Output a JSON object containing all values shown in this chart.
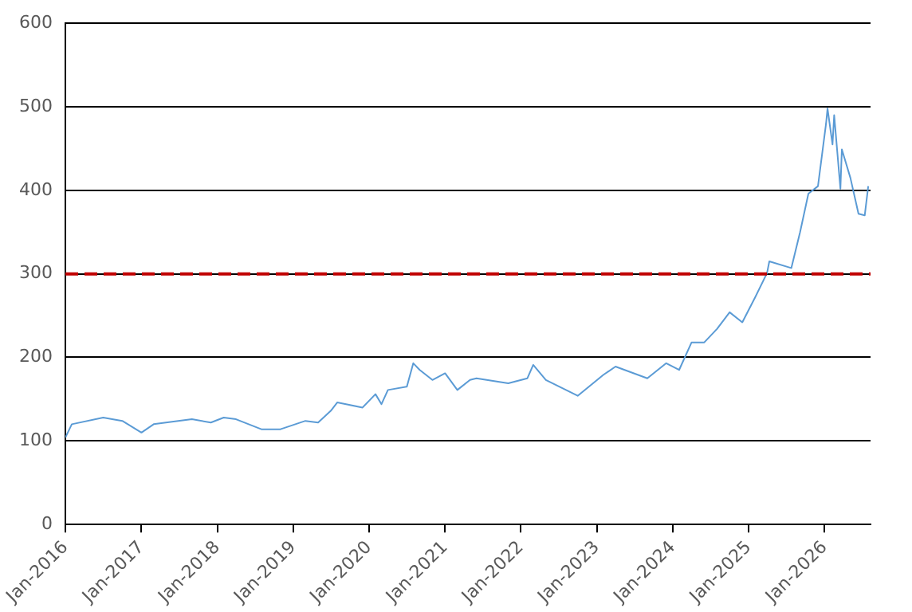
{
  "chart_data": {
    "type": "line",
    "x": [
      "2016-01",
      "2016-02",
      "2016-07",
      "2016-10",
      "2017-01",
      "2017-03",
      "2017-09",
      "2017-12",
      "2018-02",
      "2018-04",
      "2018-08",
      "2018-11",
      "2019-03",
      "2019-05",
      "2019-07",
      "2019-08",
      "2019-12",
      "2020-02",
      "2020-03",
      "2020-04",
      "2020-07",
      "2020-08",
      "2020-09",
      "2020-11",
      "2021-01",
      "2021-03",
      "2021-05",
      "2021-06",
      "2021-11",
      "2022-02",
      "2022-03",
      "2022-05",
      "2022-10",
      "2023-02",
      "2023-04",
      "2023-09",
      "2023-12",
      "2024-02",
      "2024-04",
      "2024-06",
      "2024-08",
      "2024-10",
      "2024-12",
      "2025-02",
      "2025-03-30",
      "2025-04-10",
      "2025-07-25",
      "2025-09-05",
      "2025-10-15",
      "2025-11-30",
      "2026-01-08",
      "2026-01-15",
      "2026-02-08",
      "2026-02-16",
      "2026-03-18",
      "2026-03-25",
      "2026-05-05",
      "2026-06-13",
      "2026-07-13",
      "2026-07-30"
    ],
    "series": [
      {
        "color": "#5b9bd5",
        "values": [
          104,
          120,
          128,
          124,
          110,
          120,
          126,
          122,
          128,
          126,
          114,
          114,
          124,
          122,
          136,
          146,
          140,
          156,
          144,
          161,
          165,
          193,
          185,
          173,
          181,
          161,
          173,
          175,
          169,
          175,
          191,
          173,
          154,
          179,
          189,
          175,
          193,
          185,
          218,
          218,
          234,
          254,
          242,
          272,
          301,
          315,
          307,
          350,
          396,
          405,
          480,
          498,
          455,
          490,
          402,
          449,
          415,
          372,
          370,
          405
        ]
      }
    ],
    "xlim": [
      "2016-01",
      "2026-08-10"
    ],
    "xticks": [
      {
        "value": "2016-01",
        "label": "Jan-2016"
      },
      {
        "value": "2017-01",
        "label": "Jan-2017"
      },
      {
        "value": "2018-01",
        "label": "Jan-2018"
      },
      {
        "value": "2019-01",
        "label": "Jan-2019"
      },
      {
        "value": "2020-01",
        "label": "Jan-2020"
      },
      {
        "value": "2021-01",
        "label": "Jan-2021"
      },
      {
        "value": "2022-01",
        "label": "Jan-2022"
      },
      {
        "value": "2023-01",
        "label": "Jan-2023"
      },
      {
        "value": "2024-01",
        "label": "Jan-2024"
      },
      {
        "value": "2025-01",
        "label": "Jan-2025"
      },
      {
        "value": "2026-01",
        "label": "Jan-2026"
      }
    ],
    "ylim": [
      0,
      600
    ],
    "yticks": [
      0,
      100,
      200,
      300,
      400,
      500,
      600
    ],
    "grid": "y",
    "ref_lines": [
      {
        "axis": "y",
        "value": 300,
        "color": "#c00000",
        "line_style": "dashed"
      }
    ]
  }
}
